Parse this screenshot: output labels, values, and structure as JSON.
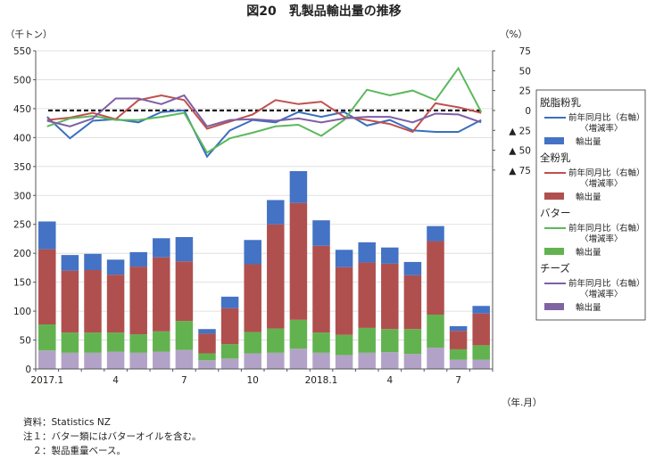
{
  "title": "図20　乳製品輸出量の推移",
  "chart_data": {
    "type": "bar+line",
    "title": "図20　乳製品輸出量の推移",
    "left_axis": {
      "label": "（千トン）",
      "ylim": [
        0,
        550
      ],
      "ticks": [
        "0",
        "50",
        "100",
        "150",
        "200",
        "250",
        "300",
        "350",
        "400",
        "450",
        "500",
        "550"
      ]
    },
    "right_axis": {
      "label": "（%）",
      "ylim": [
        -325,
        75
      ],
      "ticks": [
        "75",
        "50",
        "25",
        "0",
        "▲ 25",
        "▲ 50",
        "▲ 75"
      ],
      "tick_values": [
        75,
        50,
        25,
        0,
        -25,
        -50,
        -75
      ]
    },
    "x_labels": [
      "2017.1",
      "4",
      "7",
      "10",
      "2018.1",
      "4",
      "7"
    ],
    "x_label_index": [
      0,
      3,
      6,
      9,
      12,
      15,
      18
    ],
    "x_unit": "（年.月）",
    "legend": {
      "groups": [
        {
          "name": "脱脂粉乳",
          "line": "前年同月比（右軸）",
          "line_sub": "〈増減率〉",
          "bar": "輸出量",
          "line_color": "#3a6fbf",
          "bar_color": "#4472c4"
        },
        {
          "name": "全粉乳",
          "line": "前年同月比（右軸）",
          "line_sub": "〈増減率〉",
          "bar": "輸出量",
          "line_color": "#c0504d",
          "bar_color": "#b0504e"
        },
        {
          "name": "バター",
          "line": "前年同月比（右軸）",
          "line_sub": "〈増減率〉",
          "bar": "輸出量",
          "line_color": "#5cb85c",
          "bar_color": "#62b34f"
        },
        {
          "name": "チーズ",
          "line": "前年同月比（右軸）",
          "line_sub": "〈増減率〉",
          "bar": "輸出量",
          "line_color": "#7e5fa5",
          "bar_color": "#8064a2"
        }
      ]
    },
    "stack_colors": [
      "#b3a2c7",
      "#62b34f",
      "#b0504e",
      "#4472c4"
    ],
    "bars": {
      "cheese": [
        32,
        28,
        28,
        30,
        28,
        30,
        33,
        15,
        18,
        27,
        28,
        35,
        28,
        24,
        28,
        29,
        26,
        37,
        16,
        16
      ],
      "butter": [
        45,
        35,
        35,
        33,
        32,
        35,
        50,
        12,
        25,
        37,
        42,
        50,
        35,
        35,
        43,
        40,
        43,
        57,
        18,
        25
      ],
      "wmp": [
        130,
        107,
        108,
        100,
        117,
        128,
        103,
        34,
        62,
        117,
        180,
        202,
        150,
        117,
        113,
        113,
        93,
        127,
        32,
        55
      ],
      "smp": [
        48,
        27,
        28,
        26,
        25,
        33,
        42,
        8,
        20,
        42,
        42,
        55,
        44,
        30,
        35,
        28,
        23,
        26,
        8,
        13
      ]
    },
    "lines": {
      "smp": [
        -8,
        -35,
        -13,
        -11,
        -15,
        -2,
        0,
        -58,
        -25,
        -12,
        -15,
        -2,
        -8,
        -2,
        -19,
        -12,
        -25,
        -27,
        -27,
        -12
      ],
      "wmp": [
        -12,
        -9,
        -3,
        -11,
        13,
        19,
        13,
        -23,
        -14,
        -5,
        13,
        8,
        11,
        -8,
        -12,
        -17,
        -27,
        9,
        4,
        -3
      ],
      "butter": [
        -20,
        -10,
        -7,
        -12,
        -12,
        -8,
        -3,
        -53,
        -35,
        -28,
        -20,
        -18,
        -32,
        -12,
        26,
        19,
        25,
        13,
        53,
        -2
      ],
      "cheese": [
        -13,
        -20,
        -10,
        15,
        15,
        8,
        19,
        -20,
        -12,
        -11,
        -13,
        -10,
        -15,
        -10,
        -8,
        -8,
        -15,
        -4,
        -5,
        -15
      ]
    }
  },
  "notes": [
    "資料：Statistics NZ",
    "注１：バター類にはバターオイルを含む。",
    "　２：製品重量ベース。"
  ]
}
